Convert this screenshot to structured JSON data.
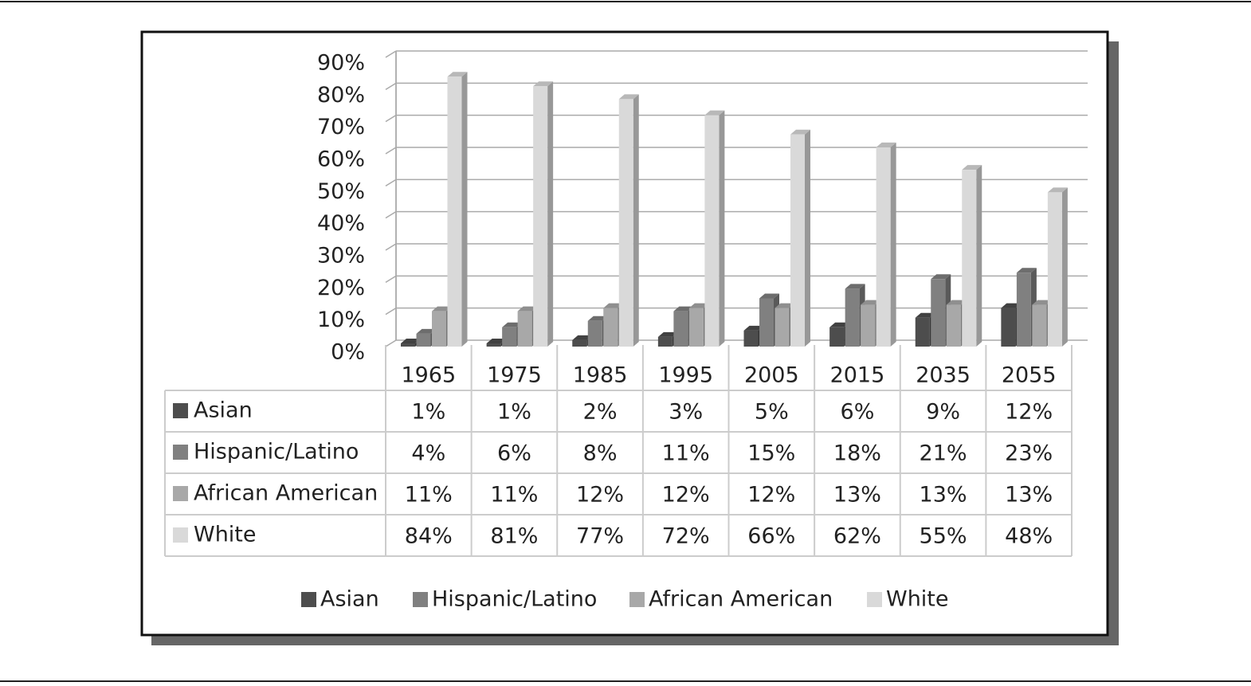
{
  "chart_data": {
    "type": "bar",
    "categories": [
      "1965",
      "1975",
      "1985",
      "1995",
      "2005",
      "2015",
      "2035",
      "2055"
    ],
    "ylim": [
      0,
      90
    ],
    "yticks": [
      {
        "value": 0,
        "label": "0%"
      },
      {
        "value": 10,
        "label": "10%"
      },
      {
        "value": 20,
        "label": "20%"
      },
      {
        "value": 30,
        "label": "30%"
      },
      {
        "value": 40,
        "label": "40%"
      },
      {
        "value": 50,
        "label": "50%"
      },
      {
        "value": 60,
        "label": "60%"
      },
      {
        "value": 70,
        "label": "70%"
      },
      {
        "value": 80,
        "label": "80%"
      },
      {
        "value": 90,
        "label": "90%"
      }
    ],
    "grid": true,
    "legend": "bottom",
    "series": [
      {
        "name": "Asian",
        "color": "#4d4d4d",
        "values": [
          1,
          1,
          2,
          3,
          5,
          6,
          9,
          12
        ],
        "value_labels": [
          "1%",
          "1%",
          "2%",
          "3%",
          "5%",
          "6%",
          "9%",
          "12%"
        ]
      },
      {
        "name": "Hispanic/Latino",
        "color": "#808080",
        "values": [
          4,
          6,
          8,
          11,
          15,
          18,
          21,
          23
        ],
        "value_labels": [
          "4%",
          "6%",
          "8%",
          "11%",
          "15%",
          "18%",
          "21%",
          "23%"
        ]
      },
      {
        "name": "African American",
        "color": "#a8a8a8",
        "values": [
          11,
          11,
          12,
          12,
          12,
          13,
          13,
          13
        ],
        "value_labels": [
          "11%",
          "11%",
          "12%",
          "12%",
          "12%",
          "13%",
          "13%",
          "13%"
        ]
      },
      {
        "name": "White",
        "color": "#d9d9d9",
        "values": [
          84,
          81,
          77,
          72,
          66,
          62,
          55,
          48
        ],
        "value_labels": [
          "84%",
          "81%",
          "77%",
          "72%",
          "66%",
          "62%",
          "55%",
          "48%"
        ]
      }
    ]
  }
}
